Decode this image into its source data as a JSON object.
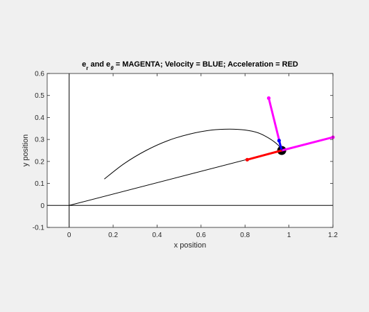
{
  "chart_data": {
    "type": "line",
    "title": {
      "part1": "e",
      "sub_r": "r",
      "part2": " and e",
      "sub_theta": "θ",
      "part3": " = MAGENTA;    Velocity = BLUE;    Acceleration = RED"
    },
    "xlabel": "x position",
    "ylabel": "y position",
    "xlim": [
      -0.1,
      1.2
    ],
    "ylim": [
      -0.1,
      0.6
    ],
    "xticks": [
      0,
      0.2,
      0.4,
      0.6,
      0.8,
      1,
      1.2
    ],
    "xtick_labels": [
      "0",
      "0.2",
      "0.4",
      "0.6",
      "0.8",
      "1",
      "1.2"
    ],
    "yticks": [
      -0.1,
      0,
      0.1,
      0.2,
      0.3,
      0.4,
      0.5,
      0.6
    ],
    "ytick_labels": [
      "-0.1",
      "0",
      "0.1",
      "0.2",
      "0.3",
      "0.4",
      "0.5",
      "0.6"
    ],
    "grid": false,
    "axis_lines": {
      "x_axis": {
        "x": [
          -0.1,
          1.2
        ],
        "y": [
          0,
          0
        ]
      },
      "y_axis": {
        "x": [
          0,
          0
        ],
        "y": [
          -0.1,
          0.6
        ]
      }
    },
    "trajectory": {
      "color": "#000000",
      "x": [
        0.16,
        0.25,
        0.35,
        0.45,
        0.55,
        0.65,
        0.73,
        0.8,
        0.86,
        0.91,
        0.95,
        0.967
      ],
      "y": [
        0.12,
        0.19,
        0.25,
        0.295,
        0.325,
        0.343,
        0.347,
        0.343,
        0.33,
        0.305,
        0.275,
        0.25
      ]
    },
    "radius_line": {
      "color": "#000000",
      "x": [
        0,
        0.967
      ],
      "y": [
        0,
        0.25
      ]
    },
    "particle": {
      "x": 0.967,
      "y": 0.25,
      "color": "#000000"
    },
    "vectors": [
      {
        "name": "e_r",
        "color": "#ff00ff",
        "x": [
          0.967,
          1.2
        ],
        "y": [
          0.25,
          0.31
        ]
      },
      {
        "name": "e_theta",
        "color": "#ff00ff",
        "x": [
          0.967,
          0.908
        ],
        "y": [
          0.25,
          0.488
        ]
      },
      {
        "name": "velocity",
        "color": "#0000ff",
        "x": [
          0.967,
          0.955
        ],
        "y": [
          0.25,
          0.295
        ]
      },
      {
        "name": "acceleration",
        "color": "#ff0000",
        "x": [
          0.967,
          0.81
        ],
        "y": [
          0.25,
          0.208
        ]
      }
    ]
  }
}
